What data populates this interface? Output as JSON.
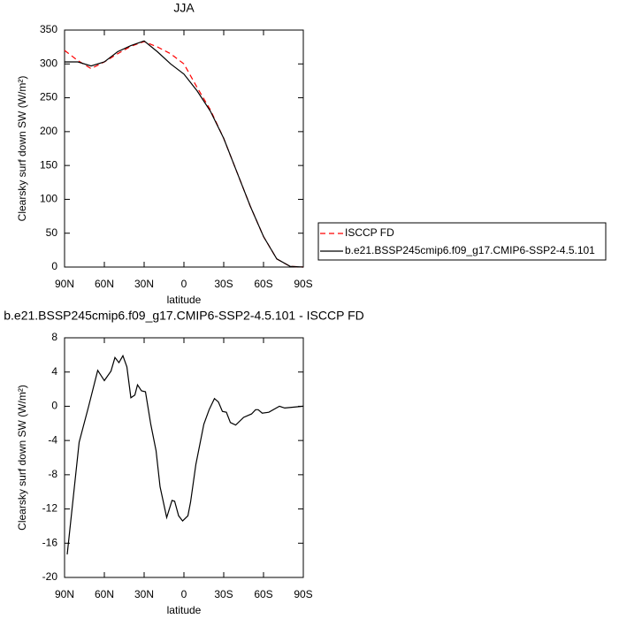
{
  "chart_data": [
    {
      "type": "line",
      "title": "JJA",
      "xlabel": "latitude",
      "ylabel": "Clearsky surf down SW (W/m²)",
      "x": [
        90,
        80,
        70,
        60,
        50,
        40,
        30,
        20,
        10,
        0,
        -10,
        -20,
        -30,
        -40,
        -50,
        -60,
        -70,
        -80,
        -90
      ],
      "series": [
        {
          "name": "ISCCP FD",
          "color": "#ff0000",
          "dashed": true,
          "values": [
            320,
            305,
            293,
            303,
            315,
            326,
            333,
            325,
            315,
            300,
            265,
            232,
            190,
            140,
            90,
            45,
            12,
            1,
            0
          ]
        },
        {
          "name": "b.e21.BSSP245cmip6.f09_g17.CMIP6-SSP2-4.5.101",
          "color": "#000000",
          "dashed": false,
          "values": [
            303,
            303,
            297,
            303,
            318,
            327,
            334,
            318,
            300,
            285,
            260,
            230,
            190,
            140,
            90,
            45,
            12,
            1,
            0
          ]
        }
      ],
      "xlim": [
        90,
        -90
      ],
      "xticks": [
        {
          "value": 90,
          "label": "90N"
        },
        {
          "value": 60,
          "label": "60N"
        },
        {
          "value": 30,
          "label": "30N"
        },
        0,
        {
          "value": -30,
          "label": "30S"
        },
        {
          "value": -60,
          "label": "60S"
        },
        {
          "value": -90,
          "label": "90S"
        }
      ],
      "ylim": [
        0,
        350
      ],
      "yticks": [
        0,
        50,
        100,
        150,
        200,
        250,
        300,
        350
      ],
      "legend_position": "right"
    },
    {
      "type": "line",
      "title": "b.e21.BSSP245cmip6.f09_g17.CMIP6-SSP2-4.5.101 - ISCCP FD",
      "xlabel": "latitude",
      "ylabel": "Clearsky surf down SW (W/m²)",
      "x": [
        88,
        79,
        72,
        65,
        60,
        55,
        52,
        49,
        46,
        43,
        40,
        37,
        35,
        32,
        29,
        25,
        21,
        18,
        13,
        9,
        7,
        4,
        1,
        -3,
        -5,
        -9,
        -15,
        -19,
        -23,
        -26,
        -29,
        -32,
        -35,
        -39,
        -45,
        -51,
        -54,
        -56,
        -59,
        -64,
        -72,
        -76,
        -90
      ],
      "series": [
        {
          "color": "#000000",
          "dashed": false,
          "values": [
            -17.3,
            -4.2,
            -0.1,
            4.2,
            3.0,
            4.1,
            5.7,
            5.1,
            5.9,
            4.6,
            1.0,
            1.3,
            2.5,
            1.8,
            1.7,
            -2.1,
            -5.2,
            -9.4,
            -13.0,
            -11.0,
            -11.1,
            -12.8,
            -13.4,
            -12.8,
            -11.2,
            -6.8,
            -2.1,
            -0.4,
            0.9,
            0.5,
            -0.6,
            -0.7,
            -1.9,
            -2.2,
            -1.3,
            -0.9,
            -0.4,
            -0.4,
            -0.8,
            -0.7,
            0.0,
            -0.2,
            0.0
          ]
        }
      ],
      "xlim": [
        90,
        -90
      ],
      "xticks": [
        {
          "value": 90,
          "label": "90N"
        },
        {
          "value": 60,
          "label": "60N"
        },
        {
          "value": 30,
          "label": "30N"
        },
        0,
        {
          "value": -30,
          "label": "30S"
        },
        {
          "value": -60,
          "label": "60S"
        },
        {
          "value": -90,
          "label": "90S"
        }
      ],
      "ylim": [
        -20,
        8
      ],
      "yticks": [
        -20,
        -16,
        -12,
        -8,
        -4,
        0,
        4,
        8
      ]
    }
  ]
}
